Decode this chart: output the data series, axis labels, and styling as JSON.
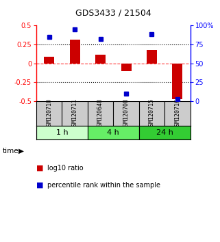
{
  "title": "GDS3433 / 21504",
  "samples": [
    "GSM120710",
    "GSM120711",
    "GSM120648",
    "GSM120708",
    "GSM120715",
    "GSM120716"
  ],
  "log10_ratio": [
    0.09,
    0.31,
    0.11,
    -0.1,
    0.18,
    -0.47
  ],
  "percentile_rank": [
    85,
    95,
    82,
    10,
    88,
    3
  ],
  "time_groups": [
    {
      "label": "1 h",
      "start": 0,
      "end": 2,
      "color": "#ccffcc"
    },
    {
      "label": "4 h",
      "start": 2,
      "end": 4,
      "color": "#66ee66"
    },
    {
      "label": "24 h",
      "start": 4,
      "end": 6,
      "color": "#33cc33"
    }
  ],
  "bar_color": "#cc0000",
  "dot_color": "#0000cc",
  "ylim_left": [
    -0.5,
    0.5
  ],
  "ylim_right": [
    0,
    100
  ],
  "yticks_left": [
    -0.5,
    -0.25,
    0,
    0.25,
    0.5
  ],
  "yticks_right": [
    0,
    25,
    50,
    75,
    100
  ],
  "hlines_dotted": [
    -0.25,
    0.25
  ],
  "hline_dashed": 0,
  "bg_color": "#ffffff",
  "sample_bg_color": "#cccccc",
  "legend_items": [
    {
      "label": "log10 ratio",
      "color": "#cc0000"
    },
    {
      "label": "percentile rank within the sample",
      "color": "#0000cc"
    }
  ]
}
